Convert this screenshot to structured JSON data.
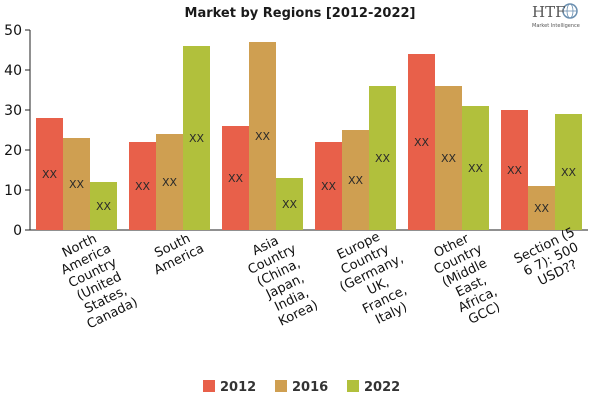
{
  "chart_data": {
    "type": "bar",
    "title": "Market by Regions [2012-2022]",
    "categories": [
      [
        "North",
        "America",
        "Country",
        "(United",
        "States,",
        "Canada)"
      ],
      [
        "South",
        "America"
      ],
      [
        "Asia",
        "Country",
        "(China,",
        "Japan,",
        "India,",
        "Korea)"
      ],
      [
        "Europe",
        "Country",
        "(Germany,",
        "UK,",
        "France,",
        "Italy)"
      ],
      [
        "Other",
        "Country",
        "(Middle",
        "East,",
        "Africa,",
        "GCC)"
      ],
      [
        "Section (5",
        "6 7): 500",
        "USD??"
      ]
    ],
    "series": [
      {
        "name": "2012",
        "color": "#e8604a",
        "values": [
          28,
          22,
          26,
          22,
          44,
          30
        ],
        "labels": [
          "XX",
          "XX",
          "XX",
          "XX",
          "XX",
          "XX"
        ]
      },
      {
        "name": "2016",
        "color": "#cf9f51",
        "values": [
          23,
          24,
          47,
          25,
          36,
          11
        ],
        "labels": [
          "XX",
          "XX",
          "XX",
          "XX",
          "XX",
          "XX"
        ]
      },
      {
        "name": "2022",
        "color": "#b1c03c",
        "values": [
          12,
          46,
          13,
          36,
          31,
          29
        ],
        "labels": [
          "XX",
          "XX",
          "XX",
          "XX",
          "XX",
          "XX"
        ]
      }
    ],
    "ylim": [
      0,
      50
    ],
    "yticks": [
      0,
      10,
      20,
      30,
      40,
      50
    ],
    "xlabel": "",
    "ylabel": "",
    "grid": false,
    "legend": "bottom-center"
  },
  "logo": {
    "brand": "HTF",
    "tagline": "Market Intelligence"
  }
}
